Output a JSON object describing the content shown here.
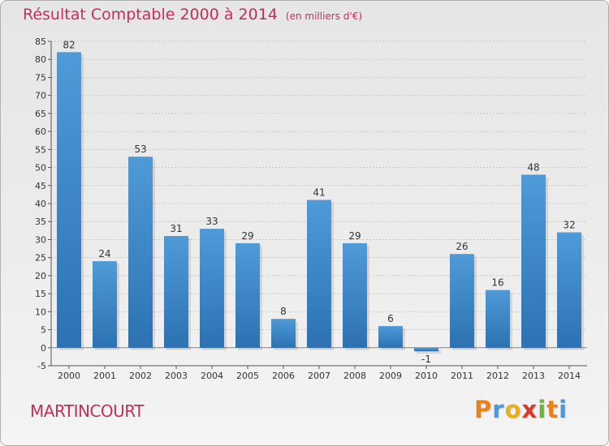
{
  "header": {
    "title": "Résultat Comptable 2000 à 2014",
    "unit": "(en milliers d'€)"
  },
  "footer": {
    "commune": "MARTINCOURT",
    "logo_letters": [
      "P",
      "r",
      "o",
      "x",
      "i",
      "t",
      "i"
    ],
    "logo_colors": [
      "#e8821d",
      "#4a9ad8",
      "#e8b11c",
      "#d93a2a",
      "#6ab437",
      "#e8821d",
      "#4a9ad8"
    ]
  },
  "colors": {
    "bar": "#4f9ad8",
    "bar_dark": "#2c72b2",
    "title": "#c0305a",
    "grid": "#c8c8c8",
    "axis_text": "#333333"
  },
  "chart_data": {
    "type": "bar",
    "title": "Résultat Comptable 2000 à 2014",
    "subtitle": "(en milliers d'€)",
    "xlabel": "",
    "ylabel": "",
    "categories": [
      "2000",
      "2001",
      "2002",
      "2003",
      "2004",
      "2005",
      "2006",
      "2007",
      "2008",
      "2009",
      "2010",
      "2011",
      "2012",
      "2013",
      "2014"
    ],
    "values": [
      82,
      24,
      53,
      31,
      33,
      29,
      8,
      41,
      29,
      6,
      -1,
      26,
      16,
      48,
      32
    ],
    "ylim": [
      -5,
      85
    ],
    "yticks": [
      -5,
      0,
      5,
      10,
      15,
      20,
      25,
      30,
      35,
      40,
      45,
      50,
      55,
      60,
      65,
      70,
      75,
      80,
      85
    ],
    "grid": true,
    "legend": "none"
  }
}
